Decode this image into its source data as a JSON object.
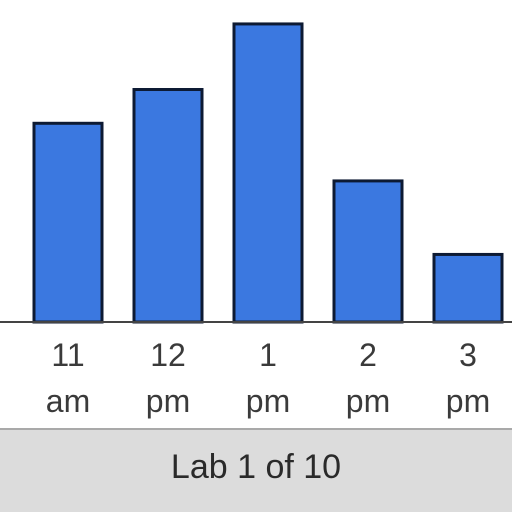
{
  "chart_data": {
    "type": "bar",
    "categories": [
      [
        "11",
        "am"
      ],
      [
        "12",
        "pm"
      ],
      [
        "1",
        "pm"
      ],
      [
        "2",
        "pm"
      ],
      [
        "3",
        "pm"
      ]
    ],
    "values": [
      10,
      11.7,
      15,
      7.1,
      3.4
    ],
    "ylim": [
      0,
      15.5
    ],
    "grid": false,
    "colors": {
      "bar_fill": "#3b78e0",
      "bar_stroke": "#0d1a33",
      "axis": "#444444",
      "tick_text": "#3a3a3a"
    }
  },
  "footer": {
    "label": "Lab 1 of 10"
  }
}
